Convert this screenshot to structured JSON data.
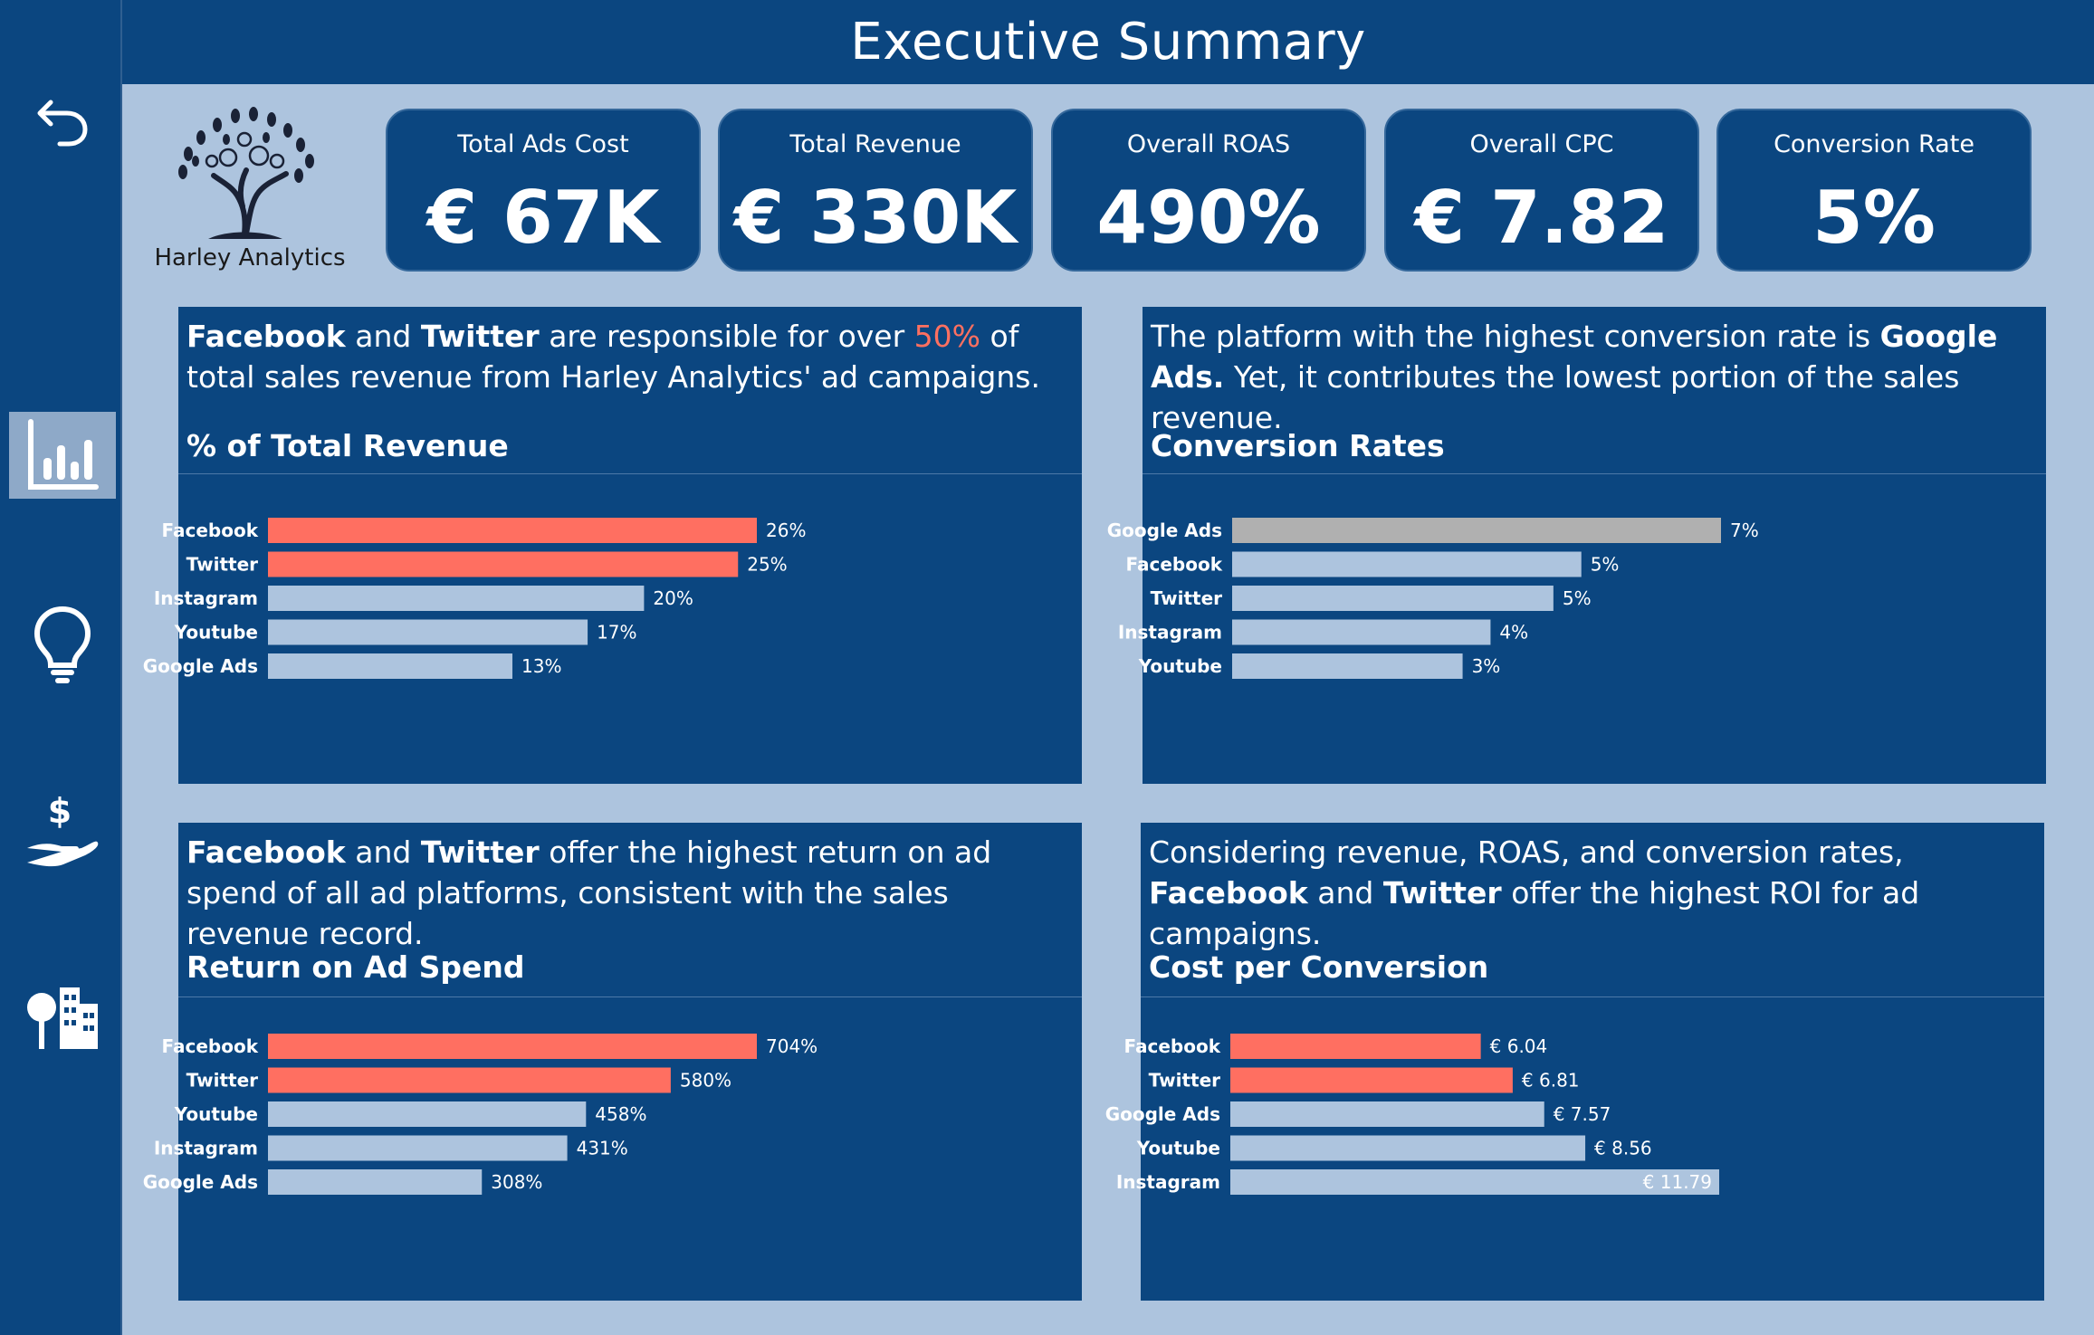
{
  "header": {
    "title": "Executive Summary"
  },
  "sidebar": {
    "items": [
      {
        "name": "back",
        "icon": "back-arrow-icon"
      },
      {
        "name": "charts",
        "icon": "bar-chart-icon",
        "active": true
      },
      {
        "name": "insights",
        "icon": "lightbulb-icon"
      },
      {
        "name": "revenue",
        "icon": "hand-dollar-icon"
      },
      {
        "name": "city",
        "icon": "tree-buildings-icon"
      }
    ]
  },
  "logo": {
    "name": "Harley Analytics"
  },
  "kpis": [
    {
      "label": "Total Ads Cost",
      "value": "€ 67K"
    },
    {
      "label": "Total Revenue",
      "value": "€ 330K"
    },
    {
      "label": "Overall ROAS",
      "value": "490%"
    },
    {
      "label": "Overall CPC",
      "value": "€ 7.82"
    },
    {
      "label": "Conversion Rate",
      "value": "5%"
    }
  ],
  "panels": [
    {
      "insight": [
        {
          "t": "Facebook",
          "b": true
        },
        {
          "t": " and "
        },
        {
          "t": "Twitter",
          "b": true
        },
        {
          "t": " are responsible for over "
        },
        {
          "t": "50%",
          "hl": true
        },
        {
          "t": " of total sales revenue from Harley Analytics' ad campaigns."
        }
      ],
      "title": "% of Total Revenue"
    },
    {
      "insight": [
        {
          "t": "The platform with the highest conversion rate is "
        },
        {
          "t": "Google Ads.",
          "b": true
        },
        {
          "t": " Yet, it contributes the lowest portion of the sales revenue."
        }
      ],
      "title": "Conversion Rates"
    },
    {
      "insight": [
        {
          "t": "Facebook",
          "b": true
        },
        {
          "t": " and "
        },
        {
          "t": "Twitter",
          "b": true
        },
        {
          "t": " offer the highest return on ad spend of all ad platforms, consistent with the sales revenue record."
        }
      ],
      "title": "Return on Ad Spend"
    },
    {
      "insight": [
        {
          "t": "Considering revenue, ROAS, and conversion rates, "
        },
        {
          "t": "Facebook",
          "b": true
        },
        {
          "t": " and "
        },
        {
          "t": "Twitter",
          "b": true
        },
        {
          "t": " offer the highest ROI for ad campaigns."
        }
      ],
      "title": "Cost per Conversion"
    }
  ],
  "colors": {
    "highlight": "#ff6f61",
    "neutral": "#adc4de",
    "grey": "#b0b0b0",
    "panel": "#0b4680"
  },
  "chart_data": [
    {
      "type": "bar",
      "title": "% of Total Revenue",
      "categories": [
        "Facebook",
        "Twitter",
        "Instagram",
        "Youtube",
        "Google Ads"
      ],
      "values": [
        26,
        25,
        20,
        17,
        13
      ],
      "labels": [
        "26%",
        "25%",
        "20%",
        "17%",
        "13%"
      ],
      "bar_colors": [
        "highlight",
        "highlight",
        "neutral",
        "neutral",
        "neutral"
      ],
      "xlim": [
        0,
        26
      ]
    },
    {
      "type": "bar",
      "title": "Conversion Rates",
      "categories": [
        "Google Ads",
        "Facebook",
        "Twitter",
        "Instagram",
        "Youtube"
      ],
      "values": [
        7.0,
        5.0,
        4.6,
        3.7,
        3.3
      ],
      "labels": [
        "7%",
        "5%",
        "5%",
        "4%",
        "3%"
      ],
      "bar_colors": [
        "grey",
        "neutral",
        "neutral",
        "neutral",
        "neutral"
      ],
      "xlim": [
        0,
        7
      ]
    },
    {
      "type": "bar",
      "title": "Return on Ad Spend",
      "categories": [
        "Facebook",
        "Twitter",
        "Youtube",
        "Instagram",
        "Google Ads"
      ],
      "values": [
        704,
        580,
        458,
        431,
        308
      ],
      "labels": [
        "704%",
        "580%",
        "458%",
        "431%",
        "308%"
      ],
      "bar_colors": [
        "highlight",
        "highlight",
        "neutral",
        "neutral",
        "neutral"
      ],
      "xlim": [
        0,
        704
      ]
    },
    {
      "type": "bar",
      "title": "Cost per Conversion",
      "categories": [
        "Facebook",
        "Twitter",
        "Google Ads",
        "Youtube",
        "Instagram"
      ],
      "values": [
        6.04,
        6.81,
        7.57,
        8.56,
        11.79
      ],
      "labels": [
        "€ 6.04",
        "€ 6.81",
        "€ 7.57",
        "€ 8.56",
        "€ 11.79"
      ],
      "bar_colors": [
        "highlight",
        "highlight",
        "neutral",
        "neutral",
        "neutral"
      ],
      "xlim": [
        0,
        11.79
      ]
    }
  ]
}
